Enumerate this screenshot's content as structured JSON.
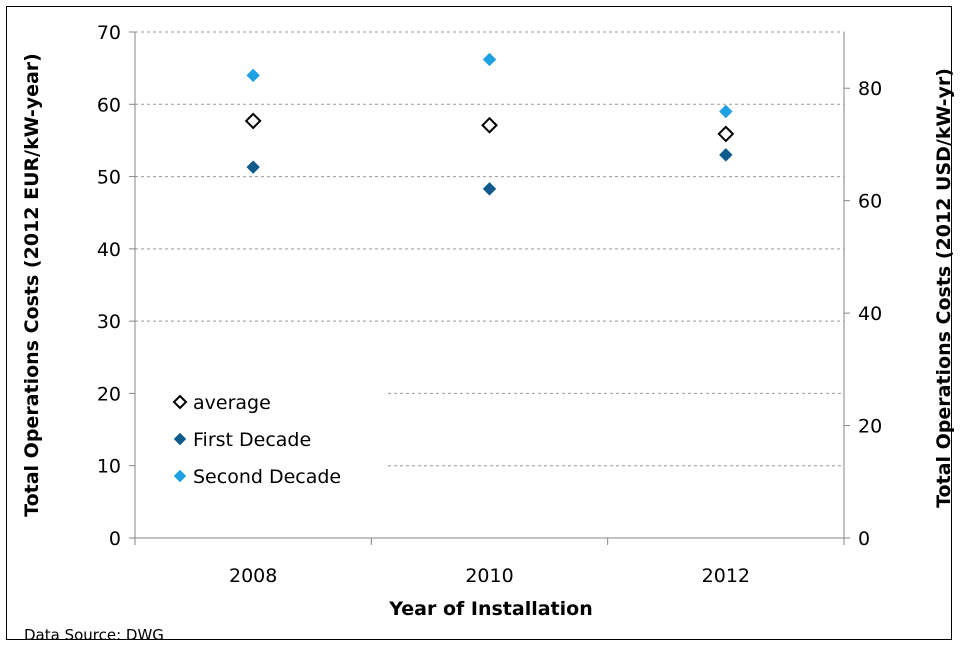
{
  "chart_data": {
    "type": "scatter",
    "categories": [
      "2008",
      "2010",
      "2012"
    ],
    "xlabel": "Year of Installation",
    "ylabel": "Total Operations Costs (2012 EUR/kW-year)",
    "y2label": "Total Operations Costs (2012 USD/kW-yr)",
    "ylim": [
      0,
      70
    ],
    "yticks": [
      0,
      10,
      20,
      30,
      40,
      50,
      60,
      70
    ],
    "y2lim": [
      0,
      90
    ],
    "y2ticks": [
      0,
      20,
      40,
      60,
      80
    ],
    "grid": true,
    "legend_position": "bottom-left",
    "series": [
      {
        "name": "average",
        "marker": "diamond-open",
        "color": "#000000",
        "values": [
          57.7,
          57.1,
          55.9
        ]
      },
      {
        "name": "First Decade",
        "marker": "diamond",
        "color": "#0e5b8c",
        "values": [
          51.3,
          48.3,
          53.0
        ]
      },
      {
        "name": "Second Decade",
        "marker": "diamond",
        "color": "#1da1e3",
        "values": [
          64.0,
          66.2,
          59.0
        ]
      }
    ],
    "source": "Data Source: DWG"
  }
}
